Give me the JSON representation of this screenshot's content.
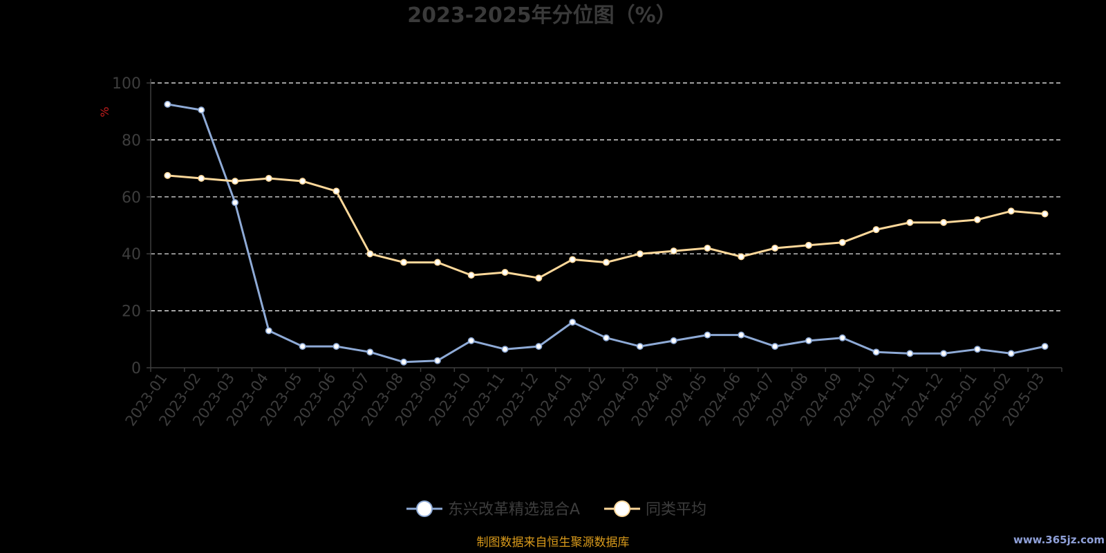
{
  "chart_data": {
    "type": "line",
    "title": "2023-2025年分位图（%）",
    "ylabel": "%",
    "ylim": [
      0,
      100
    ],
    "yticks": [
      "0",
      "20",
      "40",
      "60",
      "80",
      "100"
    ],
    "grid": true,
    "legend_position": "bottom",
    "x": [
      "2023-01",
      "2023-02",
      "2023-03",
      "2023-04",
      "2023-05",
      "2023-06",
      "2023-07",
      "2023-08",
      "2023-09",
      "2023-10",
      "2023-11",
      "2023-12",
      "2024-01",
      "2024-02",
      "2024-03",
      "2024-04",
      "2024-05",
      "2024-06",
      "2024-07",
      "2024-08",
      "2024-09",
      "2024-10",
      "2024-11",
      "2024-12",
      "2025-01",
      "2025-02",
      "2025-03"
    ],
    "series": [
      {
        "name": "东兴改革精选混合A",
        "color": "#8eaad6",
        "values": [
          92.5,
          90.5,
          58,
          13,
          7.5,
          7.5,
          5.5,
          2,
          2.5,
          9.5,
          6.5,
          7.5,
          16,
          10.5,
          7.5,
          9.5,
          11.5,
          11.5,
          7.5,
          9.5,
          10.5,
          5.5,
          5,
          5,
          6.5,
          5,
          7.5
        ]
      },
      {
        "name": "同类平均",
        "color": "#fdd89a",
        "values": [
          67.5,
          66.5,
          65.5,
          66.5,
          65.5,
          62,
          40,
          37,
          37,
          32.5,
          33.5,
          31.5,
          38,
          37,
          40,
          41,
          42,
          39,
          42,
          43,
          44,
          48.5,
          51,
          51,
          52,
          55,
          54
        ]
      }
    ]
  },
  "footer": {
    "source_text": "制图数据来自恒生聚源数据库"
  },
  "watermark": {
    "text": "www.365jz.com"
  },
  "colors": {
    "background": "#000000",
    "grid": "#ffffff",
    "axis": "#3d3d3d"
  }
}
